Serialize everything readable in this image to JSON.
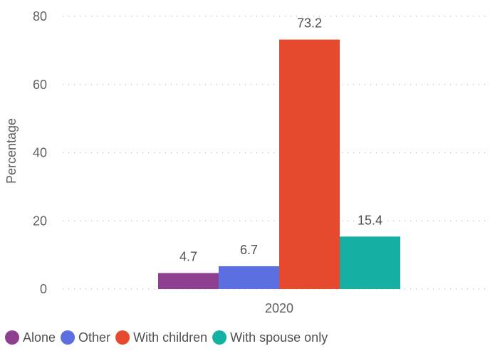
{
  "chart_data": {
    "type": "bar",
    "categories": [
      "2020"
    ],
    "series": [
      {
        "name": "Alone",
        "values": [
          4.7
        ],
        "color": "#8e3f8f"
      },
      {
        "name": "Other",
        "values": [
          6.7
        ],
        "color": "#5b6fe0"
      },
      {
        "name": "With children",
        "values": [
          73.2
        ],
        "color": "#e64a2e"
      },
      {
        "name": "With spouse only",
        "values": [
          15.4
        ],
        "color": "#14b0a2"
      }
    ],
    "title": "",
    "xlabel": "",
    "ylabel": "Percentage",
    "ylim": [
      0,
      80
    ],
    "yticks": [
      0,
      20,
      40,
      60,
      80
    ],
    "grid": true,
    "legend_position": "bottom-left",
    "data_labels": true
  }
}
